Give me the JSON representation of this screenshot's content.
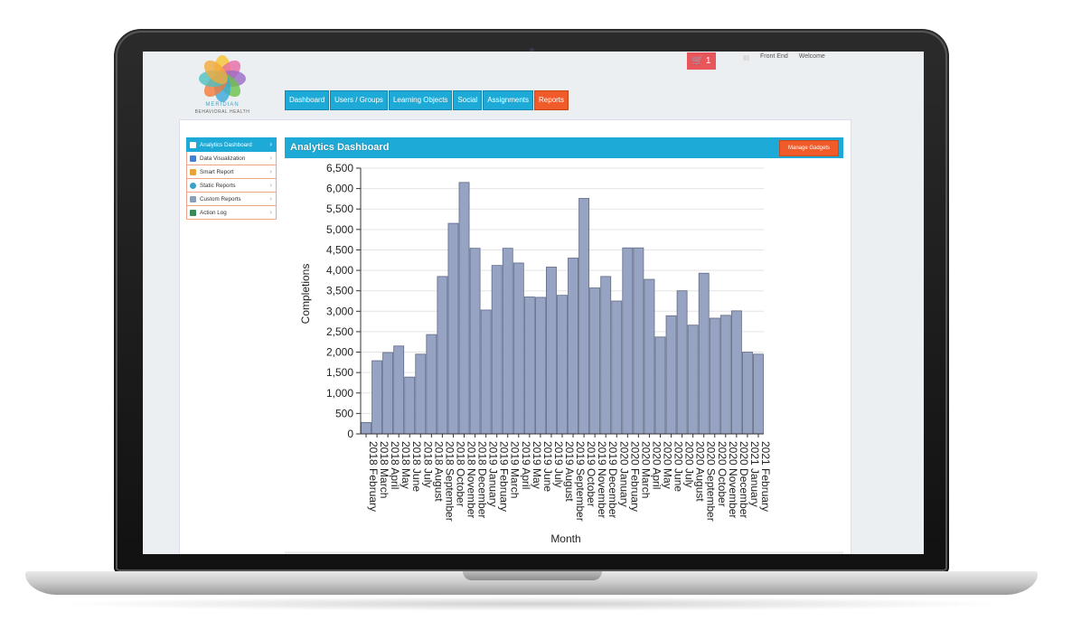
{
  "brand": {
    "line1": "MERIDIAN",
    "line2": "BEHAVIORAL HEALTH"
  },
  "nav": {
    "tabs": [
      {
        "label": "Dashboard",
        "active": false
      },
      {
        "label": "Users / Groups",
        "active": false
      },
      {
        "label": "Learning Objects",
        "active": false
      },
      {
        "label": "Social",
        "active": false
      },
      {
        "label": "Assignments",
        "active": false
      },
      {
        "label": "Reports",
        "active": true
      }
    ]
  },
  "header": {
    "cart_count": "1",
    "front_end": "Front End",
    "welcome": "Welcome"
  },
  "sidebar": {
    "items": [
      {
        "label": "Analytics Dashboard",
        "icon": "grid-icon"
      },
      {
        "label": "Data Visualization",
        "icon": "bar-chart-icon"
      },
      {
        "label": "Smart Report",
        "icon": "report-icon"
      },
      {
        "label": "Static Reports",
        "icon": "globe-icon"
      },
      {
        "label": "Custom Reports",
        "icon": "document-icon"
      },
      {
        "label": "Action Log",
        "icon": "log-icon"
      }
    ]
  },
  "panel": {
    "title": "Analytics Dashboard",
    "manage_label": "Manage Gadgets"
  },
  "colors": {
    "accent": "#1eaad6",
    "orange": "#f15a29",
    "bar": "#97a3c2",
    "bar_stroke": "#5f6a86"
  },
  "chart_data": {
    "type": "bar",
    "xlabel": "Month",
    "ylabel": "Completions",
    "ylim": [
      0,
      6500
    ],
    "yticks": [
      "0",
      "500",
      "1,000",
      "1,500",
      "2,000",
      "2,500",
      "3,000",
      "3,500",
      "4,000",
      "4,500",
      "5,000",
      "5,500",
      "6,000",
      "6,500"
    ],
    "grid": true,
    "categories": [
      "2018 February",
      "2018 March",
      "2018 April",
      "2018 May",
      "2018 June",
      "2018 July",
      "2018 August",
      "2018 September",
      "2018 October",
      "2018 November",
      "2018 December",
      "2019 January",
      "2019 February",
      "2019 March",
      "2019 April",
      "2019 May",
      "2019 June",
      "2019 July",
      "2019 August",
      "2019 September",
      "2019 October",
      "2019 November",
      "2019 December",
      "2020 January",
      "2020 February",
      "2020 March",
      "2020 April",
      "2020 May",
      "2020 June",
      "2020 July",
      "2020 August",
      "2020 September",
      "2020 October",
      "2020 November",
      "2020 December",
      "2021 January",
      "2021 February"
    ],
    "values": [
      280,
      1790,
      1990,
      2150,
      1390,
      1950,
      2430,
      3850,
      5150,
      6150,
      4540,
      3030,
      4120,
      4540,
      4180,
      3350,
      3340,
      4080,
      3390,
      4300,
      5760,
      3570,
      3850,
      3250,
      4550,
      4550,
      3780,
      2370,
      2890,
      3500,
      2660,
      3930,
      2830,
      2900,
      3010,
      2000,
      1950
    ]
  }
}
